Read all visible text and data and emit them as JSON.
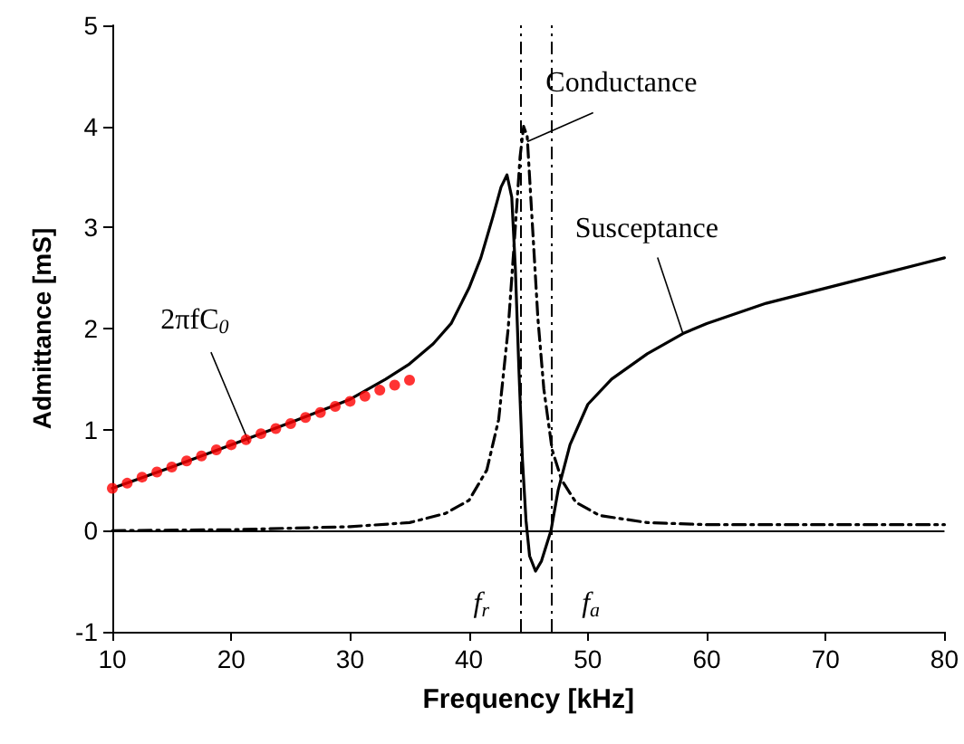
{
  "chart_data": {
    "type": "line",
    "xlabel": "Frequency [kHz]",
    "ylabel": "Admittance [mS]",
    "xlim": [
      10,
      80
    ],
    "xticks": [
      10,
      20,
      30,
      40,
      50,
      60,
      70,
      80
    ],
    "ylim": [
      -1,
      5
    ],
    "yticks": [
      -1,
      0,
      1,
      2,
      3,
      4,
      5
    ],
    "grid": false,
    "legend": false,
    "series": [
      {
        "color": "#000000",
        "line_style": "solid",
        "marker": "none",
        "x": [
          10,
          15,
          20,
          25,
          30,
          33,
          35,
          37,
          38.5,
          40,
          41,
          42,
          42.7,
          43.2,
          43.6,
          43.9,
          44.2,
          44.5,
          44.8,
          45.1,
          45.6,
          46.1,
          46.5,
          46.9,
          47.5,
          48.5,
          50,
          52,
          55,
          58,
          60,
          65,
          70,
          75,
          80
        ],
        "values": [
          0.42,
          0.63,
          0.85,
          1.07,
          1.3,
          1.5,
          1.65,
          1.85,
          2.05,
          2.4,
          2.7,
          3.1,
          3.4,
          3.52,
          3.3,
          2.6,
          1.6,
          0.7,
          0.1,
          -0.25,
          -0.4,
          -0.3,
          -0.15,
          0,
          0.4,
          0.85,
          1.25,
          1.5,
          1.75,
          1.95,
          2.05,
          2.25,
          2.4,
          2.55,
          2.7
        ]
      },
      {
        "color": "#000000",
        "line_style": "dashed",
        "marker": "none",
        "x": [
          10,
          20,
          30,
          35,
          38,
          40,
          41.5,
          42.5,
          43.3,
          43.9,
          44.3,
          44.6,
          44.9,
          45.3,
          45.8,
          46.3,
          47,
          47.8,
          49,
          51,
          55,
          60,
          70,
          80
        ],
        "values": [
          0,
          0.01,
          0.04,
          0.08,
          0.17,
          0.3,
          0.6,
          1.1,
          2.0,
          3.0,
          3.7,
          4.0,
          3.9,
          3.1,
          2.1,
          1.4,
          0.8,
          0.5,
          0.28,
          0.15,
          0.08,
          0.06,
          0.06,
          0.06
        ]
      },
      {
        "type": "scatter",
        "color": "#ff0000",
        "marker": "circle",
        "x": [
          10,
          11.25,
          12.5,
          13.75,
          15,
          16.25,
          17.5,
          18.75,
          20,
          21.25,
          22.5,
          23.75,
          25,
          26.25,
          27.5,
          28.75,
          30,
          31.25,
          32.5,
          33.75,
          35
        ],
        "values": [
          0.42,
          0.47,
          0.53,
          0.58,
          0.63,
          0.69,
          0.74,
          0.8,
          0.85,
          0.9,
          0.96,
          1.01,
          1.06,
          1.12,
          1.17,
          1.23,
          1.28,
          1.33,
          1.39,
          1.44,
          1.49
        ]
      }
    ],
    "ref_lines": [
      {
        "axis": "y",
        "value": 0,
        "line_style": "solid",
        "color": "#000000"
      },
      {
        "axis": "x",
        "value": 44.4,
        "label": "f$_{r}$",
        "line_style": "dashed",
        "color": "#000000"
      },
      {
        "axis": "x",
        "value": 46.9,
        "label": "f$_{a}$",
        "line_style": "dashed",
        "color": "#000000"
      }
    ],
    "annotations": [
      {
        "text": "Conductance",
        "x": 44.9,
        "y": 3.85
      },
      {
        "text": "Susceptance",
        "x": 58,
        "y": 1.95
      },
      {
        "text": "2πfC$_{0}$",
        "x": 21.5,
        "y": 0.87
      }
    ]
  }
}
